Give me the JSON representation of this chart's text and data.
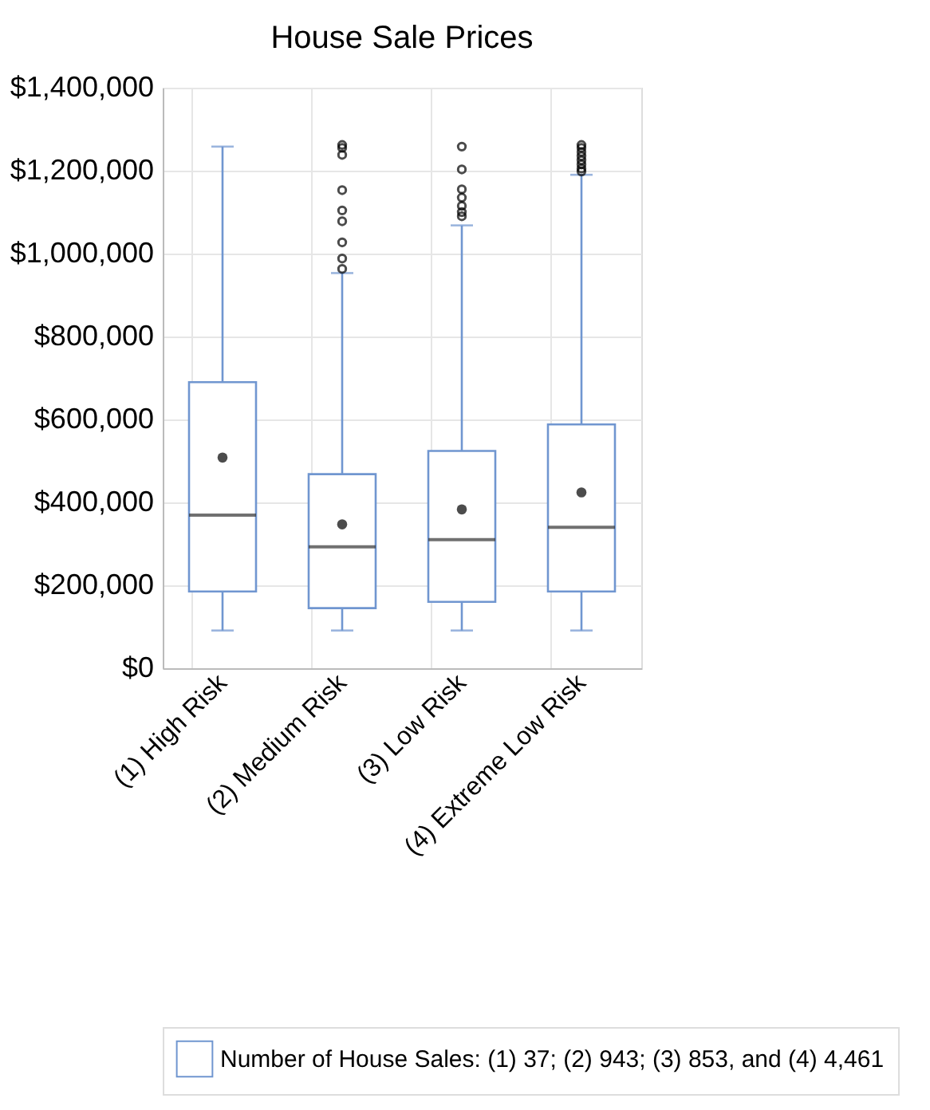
{
  "chart_data": {
    "type": "box",
    "title": "House Sale Prices",
    "categories": [
      "(1) High Risk",
      "(2) Medium Risk",
      "(3) Low Risk",
      "(4) Extreme Low Risk"
    ],
    "series": [
      {
        "name": "Number of House Sales: (1) 37; (2) 943; (3) 853, and (4) 4,461",
        "color": "#7096d0",
        "boxes": [
          {
            "low": 91000,
            "q1": 185000,
            "median": 369000,
            "q3": 690000,
            "high": 1258000,
            "mean": 508000
          },
          {
            "low": 91000,
            "q1": 145000,
            "median": 293000,
            "q3": 468000,
            "high": 953000,
            "mean": 347000,
            "outliers": [
              1262000,
              1255000,
              1238000,
              1153000,
              1104000,
              1078000,
              1027000,
              988000,
              963000
            ]
          },
          {
            "low": 91000,
            "q1": 160000,
            "median": 310000,
            "q3": 524000,
            "high": 1068000,
            "mean": 383000,
            "outliers": [
              1258000,
              1203000,
              1155000,
              1135000,
              1115000,
              1100000,
              1090000
            ]
          },
          {
            "low": 91000,
            "q1": 185000,
            "median": 340000,
            "q3": 588000,
            "high": 1190000,
            "mean": 424000,
            "outliers": [
              1262000,
              1255000,
              1245000,
              1235000,
              1225000,
              1215000,
              1205000,
              1198000
            ]
          }
        ]
      }
    ],
    "ylim": [
      0,
      1400000
    ],
    "yticks": [
      {
        "value": 0,
        "label": "$0"
      },
      {
        "value": 200000,
        "label": "$200,000"
      },
      {
        "value": 400000,
        "label": "$400,000"
      },
      {
        "value": 600000,
        "label": "$600,000"
      },
      {
        "value": 800000,
        "label": "$800,000"
      },
      {
        "value": 1000000,
        "label": "$1,000,000"
      },
      {
        "value": 1200000,
        "label": "$1,200,000"
      },
      {
        "value": 1400000,
        "label": "$1,400,000"
      }
    ],
    "grid": true,
    "legend": "bottom",
    "marker": "circle"
  }
}
